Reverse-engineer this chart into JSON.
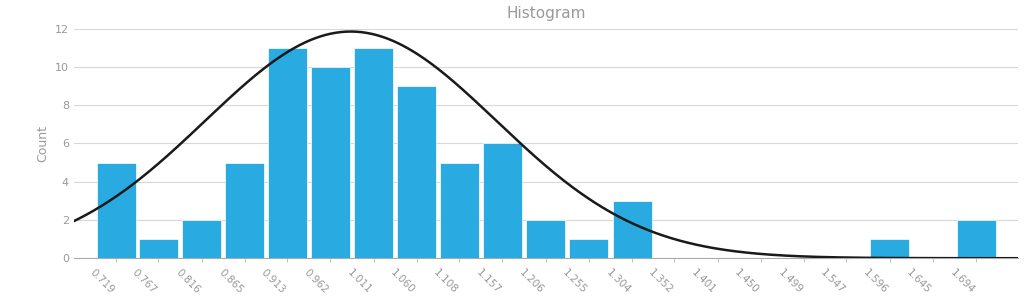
{
  "title": "Histogram",
  "ylabel": "Count",
  "bar_color": "#29ABE2",
  "bar_edge_color": "#FFFFFF",
  "curve_color": "#1a1a1a",
  "background_color": "#FFFFFF",
  "grid_color": "#D8D8D8",
  "title_color": "#999999",
  "axis_label_color": "#999999",
  "tick_label_color": "#999999",
  "categories": [
    0.719,
    0.767,
    0.816,
    0.865,
    0.913,
    0.962,
    1.011,
    1.06,
    1.108,
    1.157,
    1.206,
    1.255,
    1.304,
    1.352,
    1.401,
    1.45,
    1.499,
    1.547,
    1.596,
    1.645,
    1.694
  ],
  "values": [
    5,
    1,
    2,
    5,
    11,
    10,
    11,
    9,
    5,
    6,
    2,
    1,
    3,
    0,
    0,
    0,
    0,
    0,
    1,
    0,
    2
  ],
  "ylim": [
    0,
    12
  ],
  "yticks": [
    0,
    2,
    4,
    6,
    8,
    10,
    12
  ],
  "curve_mean": 0.985,
  "curve_std": 0.165,
  "curve_amplitude": 11.85
}
